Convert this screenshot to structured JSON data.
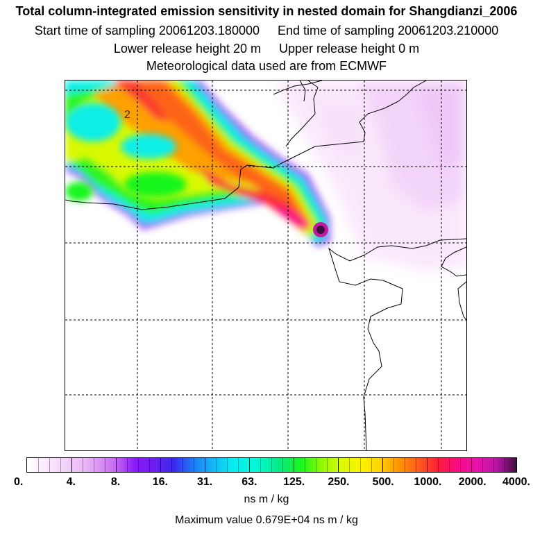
{
  "title": {
    "line1": "Total column-integrated emission sensitivity in nested domain for Shangdianzi_2006",
    "start": "Start time of sampling 20061203.180000",
    "end": "End time of sampling 20061203.210000",
    "lower": "Lower release height   20 m",
    "upper": "Upper release height    0 m",
    "met": "Meteorological data used are from ECMWF"
  },
  "map": {
    "contour_label": "2",
    "receptor": "Shangdianzi"
  },
  "colorbar": {
    "labels": [
      "0.",
      "4.",
      "8.",
      "16.",
      "31.",
      "63.",
      "125.",
      "250.",
      "500.",
      "1000.",
      "2000.",
      "4000."
    ],
    "unit": "ns m / kg"
  },
  "maximum": "Maximum value  0.679E+04 ns m / kg",
  "colors": {
    "very_low": "#f6d5fb",
    "low": "#e9b5f6",
    "cyan": "#07eeee",
    "green": "#1cf51c",
    "yellow": "#f3f900",
    "orange": "#fd9000",
    "red": "#fb1b3b",
    "magenta": "#f90c86",
    "max": "#3d0f3d"
  }
}
